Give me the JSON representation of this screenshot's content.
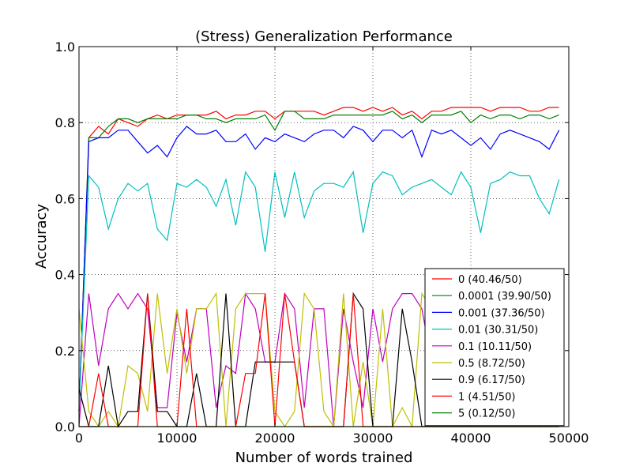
{
  "chart_data": {
    "type": "line",
    "title": "(Stress) Generalization Performance",
    "xlabel": "Number of words trained",
    "ylabel": "Accuracy",
    "xlim": [
      0,
      50000
    ],
    "ylim": [
      0,
      1.0
    ],
    "xticks": [
      "0",
      "10000",
      "20000",
      "30000",
      "40000",
      "50000"
    ],
    "yticks": [
      "0.0",
      "0.2",
      "0.4",
      "0.6",
      "0.8",
      "1.0"
    ],
    "grid": true,
    "legend_position": "lower-right",
    "x": [
      0,
      1000,
      2000,
      3000,
      4000,
      5000,
      6000,
      7000,
      8000,
      9000,
      10000,
      11000,
      12000,
      13000,
      14000,
      15000,
      16000,
      17000,
      18000,
      19000,
      20000,
      21000,
      22000,
      23000,
      24000,
      25000,
      26000,
      27000,
      28000,
      29000,
      30000,
      31000,
      32000,
      33000,
      34000,
      35000,
      36000,
      37000,
      38000,
      39000,
      40000,
      41000,
      42000,
      43000,
      44000,
      45000,
      46000,
      47000,
      48000,
      49000
    ],
    "series": [
      {
        "name": "0 (40.46/50)",
        "color": "#ff0000",
        "values": [
          0.04,
          0.76,
          0.79,
          0.77,
          0.81,
          0.8,
          0.79,
          0.81,
          0.82,
          0.81,
          0.82,
          0.82,
          0.82,
          0.82,
          0.83,
          0.81,
          0.82,
          0.82,
          0.83,
          0.83,
          0.81,
          0.83,
          0.83,
          0.83,
          0.83,
          0.82,
          0.83,
          0.84,
          0.84,
          0.83,
          0.84,
          0.83,
          0.84,
          0.82,
          0.83,
          0.81,
          0.83,
          0.83,
          0.84,
          0.84,
          0.84,
          0.84,
          0.83,
          0.84,
          0.84,
          0.84,
          0.83,
          0.83,
          0.84,
          0.84
        ]
      },
      {
        "name": "0.0001 (39.90/50)",
        "color": "#008000",
        "values": [
          0.04,
          0.76,
          0.76,
          0.79,
          0.81,
          0.81,
          0.8,
          0.81,
          0.81,
          0.81,
          0.81,
          0.82,
          0.82,
          0.81,
          0.81,
          0.8,
          0.81,
          0.81,
          0.81,
          0.82,
          0.78,
          0.83,
          0.83,
          0.81,
          0.81,
          0.81,
          0.82,
          0.82,
          0.82,
          0.82,
          0.82,
          0.82,
          0.83,
          0.81,
          0.82,
          0.8,
          0.82,
          0.82,
          0.82,
          0.83,
          0.8,
          0.82,
          0.81,
          0.82,
          0.82,
          0.81,
          0.82,
          0.82,
          0.81,
          0.82
        ]
      },
      {
        "name": "0.001 (37.36/50)",
        "color": "#0000ff",
        "values": [
          0.04,
          0.75,
          0.76,
          0.76,
          0.78,
          0.78,
          0.75,
          0.72,
          0.74,
          0.71,
          0.76,
          0.79,
          0.77,
          0.77,
          0.78,
          0.75,
          0.75,
          0.77,
          0.73,
          0.76,
          0.75,
          0.77,
          0.76,
          0.75,
          0.77,
          0.78,
          0.78,
          0.76,
          0.79,
          0.78,
          0.75,
          0.78,
          0.78,
          0.76,
          0.78,
          0.71,
          0.78,
          0.77,
          0.78,
          0.76,
          0.74,
          0.76,
          0.73,
          0.77,
          0.78,
          0.77,
          0.76,
          0.75,
          0.73,
          0.78
        ]
      },
      {
        "name": "0.01 (30.31/50)",
        "color": "#00bfbf",
        "values": [
          0.04,
          0.66,
          0.63,
          0.52,
          0.6,
          0.64,
          0.62,
          0.64,
          0.52,
          0.49,
          0.64,
          0.63,
          0.65,
          0.63,
          0.58,
          0.65,
          0.53,
          0.67,
          0.63,
          0.46,
          0.67,
          0.55,
          0.67,
          0.55,
          0.62,
          0.64,
          0.64,
          0.63,
          0.67,
          0.51,
          0.64,
          0.67,
          0.66,
          0.61,
          0.63,
          0.64,
          0.65,
          0.63,
          0.61,
          0.67,
          0.63,
          0.51,
          0.64,
          0.65,
          0.67,
          0.66,
          0.66,
          0.6,
          0.56,
          0.65
        ]
      },
      {
        "name": "0.1 (10.11/50)",
        "color": "#bf00bf",
        "values": [
          0.0,
          0.35,
          0.16,
          0.31,
          0.35,
          0.31,
          0.35,
          0.31,
          0.05,
          0.05,
          0.3,
          0.17,
          0.31,
          0.31,
          0.05,
          0.16,
          0.14,
          0.35,
          0.31,
          0.17,
          0.17,
          0.35,
          0.31,
          0.05,
          0.31,
          0.31,
          0.0,
          0.31,
          0.17,
          0.05,
          0.31,
          0.17,
          0.31,
          0.35,
          0.35,
          0.31,
          0.17,
          0.31,
          0.35,
          0.35,
          0.17,
          0.05,
          0.31,
          0.17,
          0.16,
          0.31,
          0.05,
          0.17,
          0.17,
          0.17
        ]
      },
      {
        "name": "0.5 (8.72/50)",
        "color": "#bfbf00",
        "values": [
          0.31,
          0.04,
          0.0,
          0.04,
          0.0,
          0.16,
          0.14,
          0.04,
          0.35,
          0.14,
          0.31,
          0.14,
          0.31,
          0.31,
          0.35,
          0.0,
          0.31,
          0.35,
          0.35,
          0.35,
          0.04,
          0.0,
          0.04,
          0.35,
          0.31,
          0.04,
          0.0,
          0.35,
          0.0,
          0.17,
          0.0,
          0.31,
          0.0,
          0.05,
          0.0,
          0.35,
          0.31,
          0.35,
          0.35,
          0.35,
          0.0,
          0.35,
          0.35,
          0.17,
          0.31,
          0.31,
          0.04,
          0.0,
          0.17,
          0.04
        ]
      },
      {
        "name": "0.9 (6.17/50)",
        "color": "#000000",
        "values": [
          0.1,
          0.0,
          0.0,
          0.16,
          0.0,
          0.04,
          0.04,
          0.35,
          0.04,
          0.04,
          0.0,
          0.0,
          0.14,
          0.0,
          0.0,
          0.35,
          0.0,
          0.0,
          0.17,
          0.17,
          0.17,
          0.17,
          0.17,
          0.0,
          0.0,
          0.0,
          0.0,
          0.0,
          0.35,
          0.31,
          0.0,
          0.0,
          0.0,
          0.31,
          0.17,
          0.0,
          0.0,
          0.0,
          0.0,
          0.0,
          0.0,
          0.0,
          0.0,
          0.0,
          0.0,
          0.0,
          0.0,
          0.0,
          0.0,
          0.0
        ]
      },
      {
        "name": "1 (4.51/50)",
        "color": "#ff0000",
        "values": [
          0.0,
          0.0,
          0.14,
          0.0,
          0.0,
          0.0,
          0.0,
          0.35,
          0.0,
          0.0,
          0.0,
          0.31,
          0.0,
          0.0,
          0.0,
          0.0,
          0.0,
          0.14,
          0.14,
          0.35,
          0.0,
          0.35,
          0.17,
          0.0,
          0.0,
          0.0,
          0.0,
          0.0,
          0.35,
          0.0,
          0.0,
          0.0,
          0.0,
          0.0,
          0.0,
          0.0,
          0.0,
          0.0,
          0.0,
          0.0,
          0.0,
          0.0,
          0.0,
          0.0,
          0.0,
          0.0,
          0.0,
          0.0,
          0.0,
          0.0
        ]
      },
      {
        "name": "5 (0.12/50)",
        "color": "#008000",
        "values": [
          0.0,
          0.0,
          0.0,
          0.0,
          0.0,
          0.0,
          0.0,
          0.0,
          0.0,
          0.0,
          0.0,
          0.0,
          0.0,
          0.0,
          0.0,
          0.0,
          0.0,
          0.0,
          0.0,
          0.0,
          0.0,
          0.0,
          0.0,
          0.0,
          0.0,
          0.0,
          0.0,
          0.0,
          0.0,
          0.0,
          0.0,
          0.0,
          0.0,
          0.0,
          0.0,
          0.0,
          0.0,
          0.0,
          0.0,
          0.0,
          0.0,
          0.0,
          0.0,
          0.0,
          0.0,
          0.0,
          0.0,
          0.0,
          0.0,
          0.0
        ]
      }
    ]
  }
}
